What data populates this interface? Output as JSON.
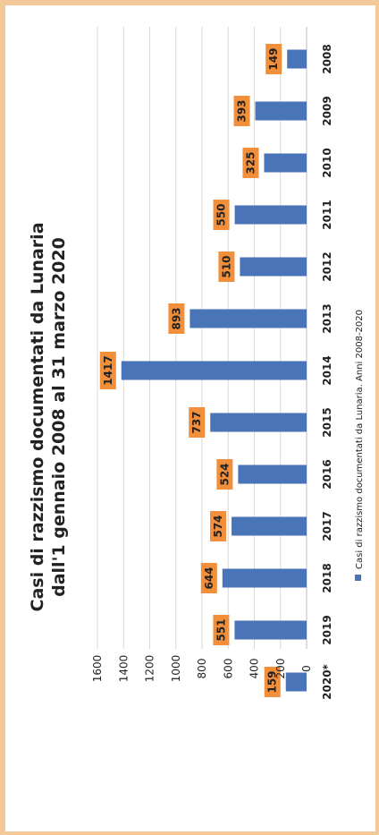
{
  "chart_data": {
    "type": "bar",
    "orientation": "vertical",
    "title_lines": [
      "Casi di razzismo documentati da Lunaria",
      "dall'1 gennaio 2008 al 31 marzo 2020"
    ],
    "categories": [
      "2008",
      "2009",
      "2010",
      "2011",
      "2012",
      "2013",
      "2014",
      "2015",
      "2016",
      "2017",
      "2018",
      "2019",
      "2020*"
    ],
    "series": [
      {
        "name": "Casi di razzismo documentati da Lunaria. Anni 2008-2020",
        "values": [
          149,
          393,
          325,
          550,
          510,
          893,
          1417,
          737,
          524,
          574,
          644,
          551,
          159
        ],
        "color": "#4a74b8"
      }
    ],
    "ylim": [
      0,
      1600
    ],
    "y_ticks": [
      "0",
      "200",
      "400",
      "600",
      "800",
      "1000",
      "1200",
      "1400",
      "1600"
    ],
    "grid": true,
    "legend_position": "bottom",
    "label_color": "#f28f3b",
    "rotation": "page rotated 90 degrees counter-clockwise"
  }
}
